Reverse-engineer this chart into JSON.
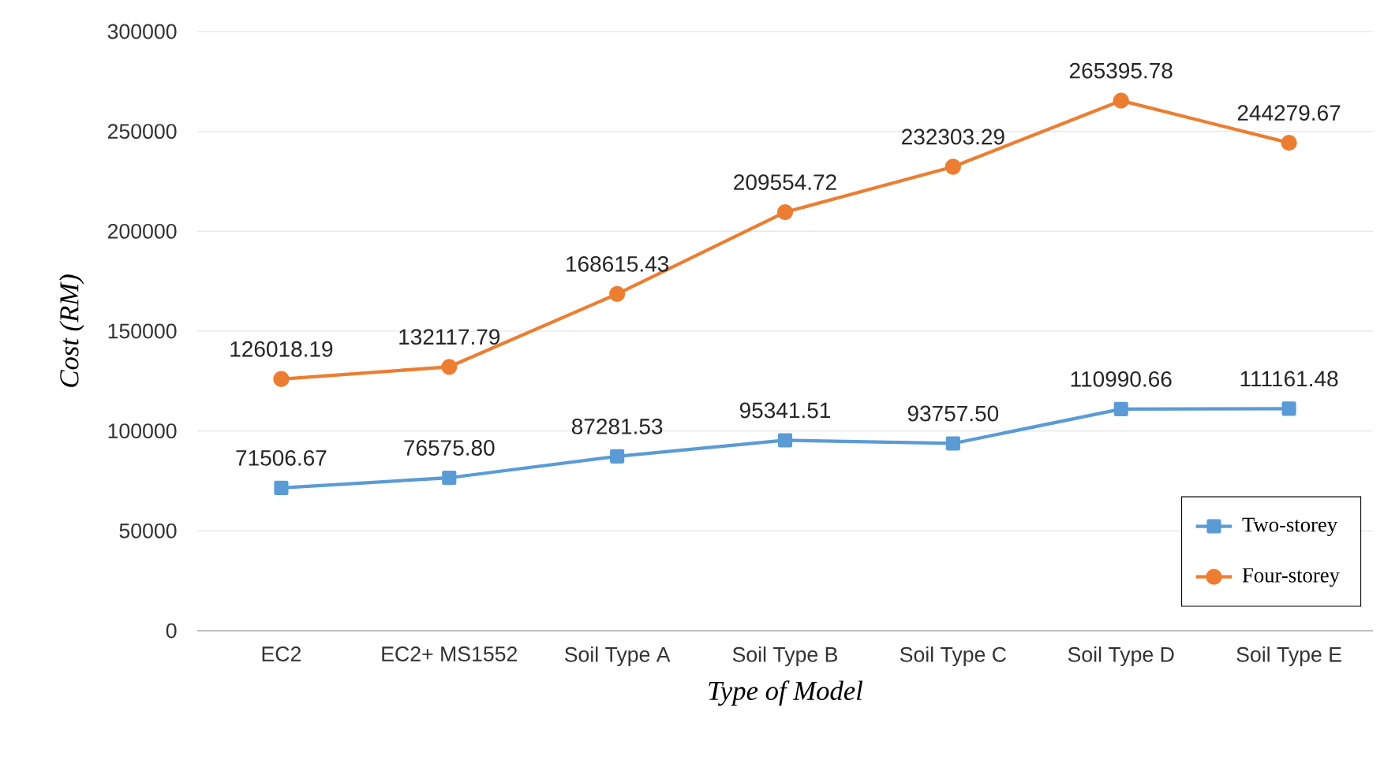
{
  "chart_data": {
    "type": "line",
    "xlabel": "Type of Model",
    "ylabel": "Cost (RM)",
    "categories": [
      "EC2",
      "EC2+ MS1552",
      "Soil Type A",
      "Soil Type B",
      "Soil Type C",
      "Soil Type D",
      "Soil Type E"
    ],
    "series": [
      {
        "name": "Two-storey",
        "color": "#5b9bd5",
        "marker": "square",
        "values": [
          71506.67,
          76575.8,
          87281.53,
          95341.51,
          93757.5,
          110990.66,
          111161.48
        ],
        "value_labels": [
          "71506.67",
          "76575.80",
          "87281.53",
          "95341.51",
          "93757.50",
          "110990.66",
          "111161.48"
        ]
      },
      {
        "name": "Four-storey",
        "color": "#ed7d31",
        "marker": "circle",
        "values": [
          126018.19,
          132117.79,
          168615.43,
          209554.72,
          232303.29,
          265395.78,
          244279.67
        ],
        "value_labels": [
          "126018.19",
          "132117.79",
          "168615.43",
          "209554.72",
          "232303.29",
          "265395.78",
          "244279.67"
        ]
      }
    ],
    "ylim": [
      0,
      300000
    ],
    "yticks": [
      0,
      50000,
      100000,
      150000,
      200000,
      250000,
      300000
    ],
    "grid": "y",
    "legend": "bottom right",
    "line_style": "solid"
  }
}
